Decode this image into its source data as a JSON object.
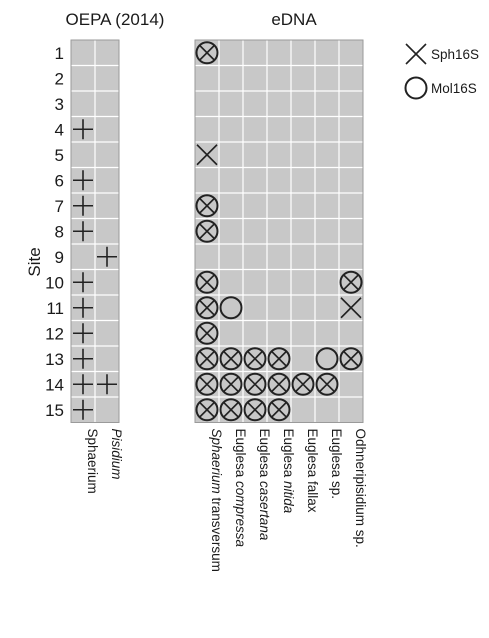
{
  "chart_data": {
    "type": "heatmap",
    "ylabel": "Site",
    "rows": [
      "1",
      "2",
      "3",
      "4",
      "5",
      "6",
      "7",
      "8",
      "9",
      "10",
      "11",
      "12",
      "13",
      "14",
      "15"
    ],
    "panels": [
      {
        "title": "OEPA (2014)",
        "columns": [
          {
            "label": "Sphaerium",
            "italic": false
          },
          {
            "label": "Pisidium",
            "italic": true
          }
        ],
        "marks": [
          {
            "row": "4",
            "col": 0,
            "marker": "plus"
          },
          {
            "row": "6",
            "col": 0,
            "marker": "plus"
          },
          {
            "row": "7",
            "col": 0,
            "marker": "plus"
          },
          {
            "row": "8",
            "col": 0,
            "marker": "plus"
          },
          {
            "row": "9",
            "col": 1,
            "marker": "plus"
          },
          {
            "row": "10",
            "col": 0,
            "marker": "plus"
          },
          {
            "row": "11",
            "col": 0,
            "marker": "plus"
          },
          {
            "row": "12",
            "col": 0,
            "marker": "plus"
          },
          {
            "row": "13",
            "col": 0,
            "marker": "plus"
          },
          {
            "row": "14",
            "col": 0,
            "marker": "plus"
          },
          {
            "row": "14",
            "col": 1,
            "marker": "plus"
          },
          {
            "row": "15",
            "col": 0,
            "marker": "plus"
          }
        ]
      },
      {
        "title": "eDNA",
        "columns": [
          {
            "label": "Sphaerium transversum",
            "parts": [
              {
                "text": "Sphaerium",
                "italic": true
              },
              {
                "text": " transversum",
                "italic": false
              }
            ]
          },
          {
            "label": "Euglesa compressa",
            "parts": [
              {
                "text": "Euglesa ",
                "italic": false
              },
              {
                "text": "compressa",
                "italic": true
              }
            ]
          },
          {
            "label": "Euglesa casertana",
            "parts": [
              {
                "text": "Euglesa ",
                "italic": false
              },
              {
                "text": "casertana",
                "italic": true
              }
            ]
          },
          {
            "label": "Euglesa nitida",
            "parts": [
              {
                "text": "Euglesa ",
                "italic": false
              },
              {
                "text": "nitida",
                "italic": true
              }
            ]
          },
          {
            "label": "Euglesa fallax",
            "parts": [
              {
                "text": "Euglesa fallax",
                "italic": false
              }
            ]
          },
          {
            "label": "Euglesa sp.",
            "parts": [
              {
                "text": "Euglesa sp.",
                "italic": false
              }
            ]
          },
          {
            "label": "Odhneripisidium sp.",
            "parts": [
              {
                "text": "Odhneripisidium sp.",
                "italic": false
              }
            ]
          }
        ],
        "marks": [
          {
            "row": "1",
            "col": 0,
            "marker": "both"
          },
          {
            "row": "5",
            "col": 0,
            "marker": "x"
          },
          {
            "row": "7",
            "col": 0,
            "marker": "both"
          },
          {
            "row": "8",
            "col": 0,
            "marker": "both"
          },
          {
            "row": "10",
            "col": 0,
            "marker": "both"
          },
          {
            "row": "10",
            "col": 6,
            "marker": "both"
          },
          {
            "row": "11",
            "col": 0,
            "marker": "both"
          },
          {
            "row": "11",
            "col": 1,
            "marker": "circle"
          },
          {
            "row": "11",
            "col": 6,
            "marker": "x"
          },
          {
            "row": "12",
            "col": 0,
            "marker": "both"
          },
          {
            "row": "13",
            "col": 0,
            "marker": "both"
          },
          {
            "row": "13",
            "col": 1,
            "marker": "both"
          },
          {
            "row": "13",
            "col": 2,
            "marker": "both"
          },
          {
            "row": "13",
            "col": 3,
            "marker": "both"
          },
          {
            "row": "13",
            "col": 5,
            "marker": "circle"
          },
          {
            "row": "13",
            "col": 6,
            "marker": "both"
          },
          {
            "row": "14",
            "col": 0,
            "marker": "both"
          },
          {
            "row": "14",
            "col": 1,
            "marker": "both"
          },
          {
            "row": "14",
            "col": 2,
            "marker": "both"
          },
          {
            "row": "14",
            "col": 3,
            "marker": "both"
          },
          {
            "row": "14",
            "col": 4,
            "marker": "both"
          },
          {
            "row": "14",
            "col": 5,
            "marker": "both"
          },
          {
            "row": "15",
            "col": 0,
            "marker": "both"
          },
          {
            "row": "15",
            "col": 1,
            "marker": "both"
          },
          {
            "row": "15",
            "col": 2,
            "marker": "both"
          },
          {
            "row": "15",
            "col": 3,
            "marker": "both"
          }
        ]
      }
    ],
    "legend": [
      {
        "marker": "x",
        "label": "Sph16S"
      },
      {
        "marker": "circle",
        "label": "Mol16S"
      }
    ],
    "legend_position": "top-right",
    "cell_color": "#c8c8c8",
    "grid_line_color": "#ffffff"
  }
}
